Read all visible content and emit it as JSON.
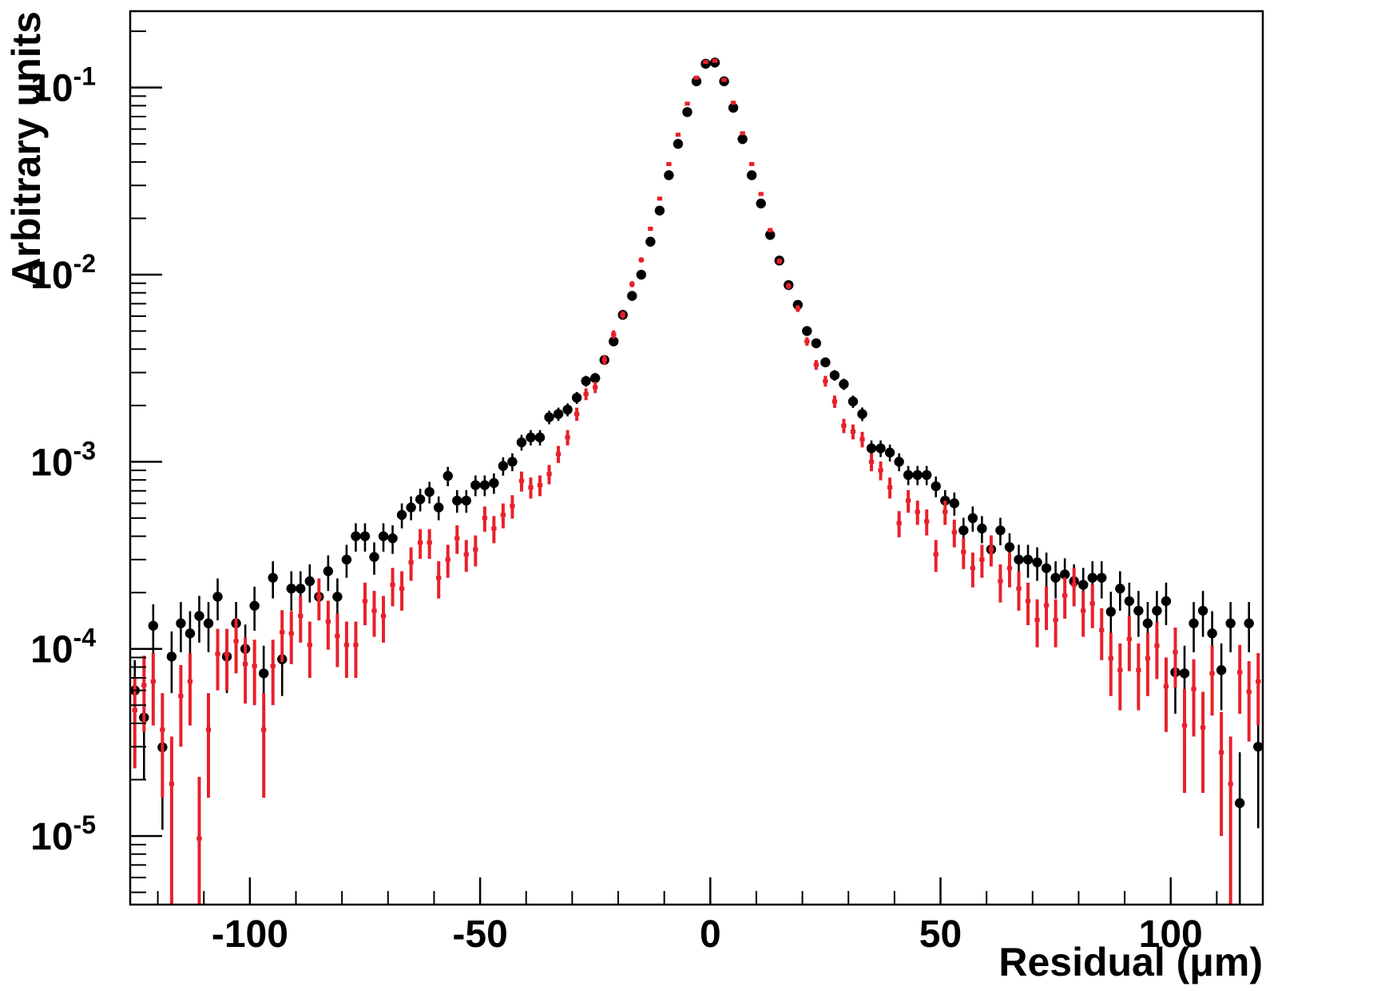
{
  "chart_data": {
    "type": "errorbar",
    "log_y": true,
    "y_label": "Arbitrary units",
    "x_label": "Residual (μm)",
    "xlim": [
      -126,
      120
    ],
    "ylim": [
      4.3e-06,
      0.256
    ],
    "xticks": [
      -100,
      -50,
      0,
      50,
      100
    ],
    "xminorticks": [
      -120,
      -110,
      -90,
      -80,
      -70,
      -60,
      -40,
      -30,
      -20,
      -10,
      10,
      20,
      30,
      40,
      60,
      70,
      80,
      90,
      110
    ],
    "yticks": [
      {
        "value": 1e-05,
        "label": "10",
        "exp": "-5"
      },
      {
        "value": 0.0001,
        "label": "10",
        "exp": "-4"
      },
      {
        "value": 0.001,
        "label": "10",
        "exp": "-3"
      },
      {
        "value": 0.01,
        "label": "10",
        "exp": "-2"
      },
      {
        "value": 0.1,
        "label": "10",
        "exp": "-1"
      }
    ],
    "yminorticks": [
      5e-06,
      6e-06,
      7e-06,
      8e-06,
      9e-06,
      2e-05,
      3e-05,
      4e-05,
      5e-05,
      6e-05,
      7e-05,
      8e-05,
      9e-05,
      0.0002,
      0.0003,
      0.0004,
      0.0005,
      0.0006,
      0.0007,
      0.0008,
      0.0009,
      0.002,
      0.003,
      0.004,
      0.005,
      0.006,
      0.007,
      0.008,
      0.009,
      0.02,
      0.03,
      0.04,
      0.05,
      0.06,
      0.07,
      0.08,
      0.09,
      0.2
    ],
    "x": [
      -125,
      -123,
      -121,
      -119,
      -117,
      -115,
      -113,
      -111,
      -109,
      -107,
      -105,
      -103,
      -101,
      -99,
      -97,
      -95,
      -93,
      -91,
      -89,
      -87,
      -85,
      -83,
      -81,
      -79,
      -77,
      -75,
      -73,
      -71,
      -69,
      -67,
      -65,
      -63,
      -61,
      -59,
      -57,
      -55,
      -53,
      -51,
      -49,
      -47,
      -45,
      -43,
      -41,
      -39,
      -37,
      -35,
      -33,
      -31,
      -29,
      -27,
      -25,
      -23,
      -21,
      -19,
      -17,
      -15,
      -13,
      -11,
      -9,
      -7,
      -5,
      -3,
      -1,
      1,
      3,
      5,
      7,
      9,
      11,
      13,
      15,
      17,
      19,
      21,
      23,
      25,
      27,
      29,
      31,
      33,
      35,
      37,
      39,
      41,
      43,
      45,
      47,
      49,
      51,
      53,
      55,
      57,
      59,
      61,
      63,
      65,
      67,
      69,
      71,
      73,
      75,
      77,
      79,
      81,
      83,
      85,
      87,
      89,
      91,
      93,
      95,
      97,
      99,
      101,
      103,
      105,
      107,
      109,
      111,
      113,
      115,
      117,
      119
    ],
    "series": [
      {
        "color": "#000000",
        "marker": "circle",
        "values": [
          6e-05,
          4.3e-05,
          0.000133,
          2.98e-05,
          9.1e-05,
          0.000137,
          0.000121,
          0.00015,
          0.000137,
          0.00019,
          9.1e-05,
          0.000137,
          0.0001,
          0.00017,
          7.4e-05,
          0.00024,
          8.8e-05,
          0.00021,
          0.00021,
          0.00023,
          0.00019,
          0.00026,
          0.00019,
          0.0003,
          0.0004,
          0.0004,
          0.00031,
          0.0004,
          0.00039,
          0.00052,
          0.00057,
          0.00063,
          0.00069,
          0.00057,
          0.00084,
          0.00062,
          0.00062,
          0.00075,
          0.00075,
          0.00077,
          0.00095,
          0.001,
          0.00127,
          0.00135,
          0.00135,
          0.00173,
          0.0018,
          0.0019,
          0.0022,
          0.0027,
          0.0028,
          0.0035,
          0.0044,
          0.0061,
          0.0077,
          0.01,
          0.015,
          0.022,
          0.034,
          0.05,
          0.074,
          0.108,
          0.134,
          0.136,
          0.108,
          0.078,
          0.053,
          0.034,
          0.024,
          0.0163,
          0.0119,
          0.0088,
          0.0069,
          0.005,
          0.0043,
          0.0034,
          0.0029,
          0.0026,
          0.0021,
          0.0018,
          0.00118,
          0.00118,
          0.00112,
          0.001,
          0.00085,
          0.00085,
          0.00085,
          0.00074,
          0.00062,
          0.0006,
          0.00043,
          0.0005,
          0.00044,
          0.00034,
          0.00043,
          0.00035,
          0.0003,
          0.0003,
          0.00029,
          0.00027,
          0.00024,
          0.00025,
          0.00023,
          0.00022,
          0.00024,
          0.00024,
          0.000158,
          0.00021,
          0.00018,
          0.00016,
          0.000137,
          0.00016,
          0.00018,
          7.5e-05,
          7.4e-05,
          0.000137,
          0.00016,
          0.000121,
          7.7e-05,
          0.000137,
          1.5e-05,
          0.000137,
          3e-05
        ],
        "errors": [
          2.7e-05,
          2.3e-05,
          4e-05,
          1.9e-05,
          3.3e-05,
          4.1e-05,
          3.8e-05,
          4.2e-05,
          4.1e-05,
          4.8e-05,
          3.3e-05,
          4.1e-05,
          3.5e-05,
          4.5e-05,
          3e-05,
          5.4e-05,
          3.2e-05,
          5e-05,
          5e-05,
          5.3e-05,
          4.8e-05,
          5.6e-05,
          4.8e-05,
          6e-05,
          6.9e-05,
          6.9e-05,
          6.1e-05,
          6.9e-05,
          6.8e-05,
          7.9e-05,
          8.3e-05,
          8.7e-05,
          9.1e-05,
          8.3e-05,
          0.0001,
          8.6e-05,
          8.6e-05,
          9.5e-05,
          9.5e-05,
          9.6e-05,
          0.000107,
          0.00011,
          0.000123,
          0.000127,
          0.000127,
          0.000144,
          0.000147,
          0.000151,
          0.000162,
          0.00018,
          0.000183,
          0.0002,
          0.00023,
          0.00027,
          0.0003,
          0.00035,
          0.00042,
          0.00051,
          0.00064,
          0.00077,
          0.00094,
          0.00114,
          0.00127,
          0.00128,
          0.00114,
          0.00097,
          0.0008,
          0.00064,
          0.00054,
          0.00044,
          0.00038,
          0.00032,
          0.00029,
          0.00024,
          0.00023,
          0.0002,
          0.00019,
          0.00018,
          0.00016,
          0.00015,
          0.00012,
          0.00012,
          0.000116,
          0.00011,
          0.0001,
          0.0001,
          0.0001,
          9.4e-05,
          8.6e-05,
          8.5e-05,
          7.2e-05,
          7.7e-05,
          7.3e-05,
          6.4e-05,
          7.2e-05,
          6.5e-05,
          6e-05,
          6e-05,
          5.9e-05,
          5.7e-05,
          5.4e-05,
          5.5e-05,
          5.3e-05,
          5.1e-05,
          5.4e-05,
          5.4e-05,
          4.4e-05,
          5e-05,
          4.6e-05,
          4.4e-05,
          4.1e-05,
          4.4e-05,
          4.6e-05,
          3e-05,
          3e-05,
          4.1e-05,
          4.4e-05,
          3.8e-05,
          3e-05,
          4.1e-05,
          1.3e-05,
          4.1e-05,
          1.9e-05
        ]
      },
      {
        "color": "#e8202a",
        "marker": "cross",
        "values": [
          4.7e-05,
          6.4e-05,
          6.7e-05,
          3.7e-05,
          1.9e-05,
          5.6e-05,
          6.7e-05,
          9.7e-06,
          3.7e-05,
          9.4e-05,
          9.4e-05,
          0.00011,
          8.3e-05,
          8.1e-05,
          3.7e-05,
          8.1e-05,
          0.000123,
          0.000121,
          0.00015,
          0.000105,
          0.00019,
          0.00014,
          0.000117,
          0.000105,
          0.000105,
          0.00018,
          0.00016,
          0.00015,
          0.00022,
          0.00021,
          0.00029,
          0.00037,
          0.00037,
          0.00024,
          0.0003,
          0.00039,
          0.00032,
          0.00034,
          0.0005,
          0.00044,
          0.00052,
          0.00058,
          0.00079,
          0.00073,
          0.00075,
          0.00086,
          0.0011,
          0.00135,
          0.0018,
          0.0023,
          0.0025,
          0.0035,
          0.0048,
          0.0061,
          0.0089,
          0.012,
          0.0176,
          0.0255,
          0.039,
          0.056,
          0.082,
          0.113,
          0.137,
          0.139,
          0.11,
          0.083,
          0.057,
          0.039,
          0.027,
          0.0173,
          0.0118,
          0.0087,
          0.0066,
          0.0044,
          0.0033,
          0.0027,
          0.0021,
          0.00156,
          0.00145,
          0.00132,
          0.001,
          0.0009,
          0.00073,
          0.00047,
          0.00062,
          0.00054,
          0.00048,
          0.00032,
          0.00054,
          0.00042,
          0.00033,
          0.00027,
          0.0003,
          0.00034,
          0.00023,
          0.00027,
          0.00021,
          0.00018,
          0.000143,
          0.000171,
          0.000143,
          0.000193,
          0.00022,
          0.00016,
          0.000175,
          0.000126,
          8.9e-05,
          7.7e-05,
          0.000113,
          7.7e-05,
          8.9e-05,
          0.000104,
          6.3e-05,
          9.6e-05,
          3.9e-05,
          6.1e-05,
          3.8e-05,
          7.4e-05,
          2.8e-05,
          1.9e-05,
          7.5e-05,
          5.9e-05,
          6.7e-05
        ],
        "errors": [
          2.4e-05,
          2.8e-05,
          2.8e-05,
          2.1e-05,
          1.5e-05,
          2.6e-05,
          2.8e-05,
          1.1e-05,
          2.1e-05,
          3.4e-05,
          3.4e-05,
          3.6e-05,
          3.2e-05,
          3.1e-05,
          2.1e-05,
          3.1e-05,
          3.8e-05,
          3.8e-05,
          4.2e-05,
          3.5e-05,
          4.8e-05,
          4.1e-05,
          3.7e-05,
          3.5e-05,
          3.5e-05,
          4.6e-05,
          4.4e-05,
          4.2e-05,
          5.1e-05,
          5e-05,
          5.9e-05,
          6.7e-05,
          6.7e-05,
          5.4e-05,
          6e-05,
          6.8e-05,
          6.2e-05,
          6.4e-05,
          7.7e-05,
          7.3e-05,
          7.9e-05,
          8.3e-05,
          9.7e-05,
          9.4e-05,
          9.5e-05,
          0.000102,
          0.000115,
          0.000127,
          0.000147,
          0.000166,
          0.000173,
          0.0002,
          0.00024,
          0.00027,
          0.00033,
          0.00038,
          0.00046,
          0.00055,
          0.00068,
          0.00082,
          0.00099,
          0.00116,
          0.00128,
          0.00129,
          0.00115,
          0.001,
          0.00083,
          0.00068,
          0.00057,
          0.00046,
          0.00038,
          0.00032,
          0.00028,
          0.00023,
          0.0002,
          0.00018,
          0.00016,
          0.000137,
          0.000132,
          0.000126,
          0.00011,
          0.000104,
          9.4e-05,
          7.5e-05,
          8.6e-05,
          8e-05,
          7.6e-05,
          6.2e-05,
          8e-05,
          7.1e-05,
          6.3e-05,
          5.7e-05,
          6e-05,
          6.4e-05,
          5.3e-05,
          5.7e-05,
          5e-05,
          4.6e-05,
          4.1e-05,
          4.5e-05,
          4.1e-05,
          4.8e-05,
          5.1e-05,
          4.4e-05,
          4.6e-05,
          3.9e-05,
          3.3e-05,
          3e-05,
          3.7e-05,
          3e-05,
          3.3e-05,
          3.5e-05,
          2.7e-05,
          3.4e-05,
          2.2e-05,
          2.7e-05,
          2.1e-05,
          3e-05,
          1.8e-05,
          1.5e-05,
          3e-05,
          2.7e-05,
          2.8e-05
        ]
      }
    ]
  }
}
